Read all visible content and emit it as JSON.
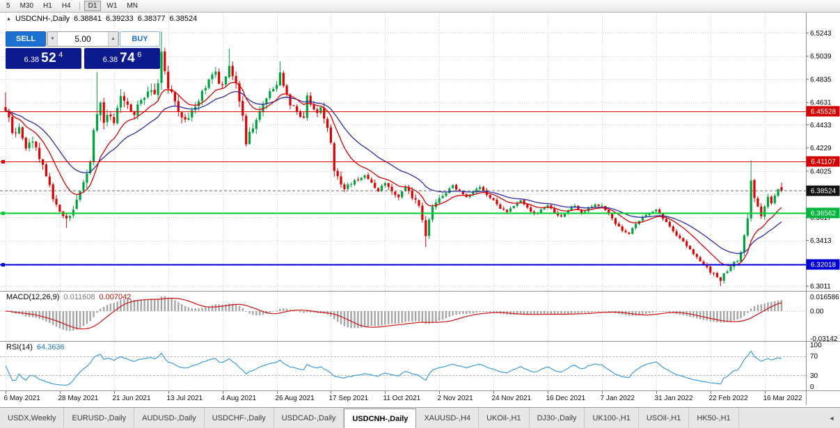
{
  "toolbar": {
    "groups": [
      [
        "5",
        "M30",
        "H1",
        "H4"
      ],
      [
        "D1",
        "W1",
        "MN"
      ]
    ],
    "active": "D1"
  },
  "icons": {
    "symbol_marker": "▲",
    "spinner_up": "▲",
    "spinner_down": "▼",
    "tab_scroll_left": "◄"
  },
  "chart": {
    "title": "USDCNH-,Daily",
    "ohlc": {
      "open": "6.38841",
      "high": "6.39233",
      "low": "6.38377",
      "close": "6.38524"
    }
  },
  "trade_panel": {
    "sell_label": "SELL",
    "buy_label": "BUY",
    "lot": "5.00",
    "bid": {
      "prefix": "6.38",
      "big": "52",
      "sup": "4"
    },
    "ask": {
      "prefix": "6.38",
      "big": "74",
      "sup": "6"
    }
  },
  "indicators": {
    "macd": {
      "label": "MACD(12,26,9)",
      "value1": "0.011608",
      "value2": "0.007042",
      "axis": {
        "top": "0.016586",
        "zero": "0.00",
        "bottom": "-0.03142"
      }
    },
    "rsi": {
      "label": "RSI(14)",
      "value": "64.3636",
      "axis": [
        "100",
        "70",
        "30",
        "0"
      ],
      "levels": [
        70,
        30
      ]
    }
  },
  "price_axis": {
    "labels": [
      "6.5243",
      "6.5039",
      "6.4835",
      "6.4631",
      "6.4433",
      "6.4229",
      "6.4025",
      "6.3617",
      "6.3413",
      "6.3011"
    ],
    "badges": [
      {
        "value": "6.45528",
        "price": 6.45528,
        "color": "#d40000"
      },
      {
        "value": "6.41107",
        "price": 6.41107,
        "color": "#d40000"
      },
      {
        "value": "6.38524",
        "price": 6.38524,
        "color": "#141414"
      },
      {
        "value": "6.36562",
        "price": 6.36562,
        "color": "#00b43c"
      },
      {
        "value": "6.32018",
        "price": 6.32018,
        "color": "#0000d4"
      }
    ]
  },
  "levels": [
    {
      "price": 6.45528,
      "color": "#e00000",
      "width": 1,
      "handle": false
    },
    {
      "price": 6.41107,
      "color": "#e00000",
      "width": 1,
      "handle": true
    },
    {
      "price": 6.36562,
      "color": "#00cc30",
      "width": 2,
      "handle": true
    },
    {
      "price": 6.32018,
      "color": "#0000e0",
      "width": 2,
      "handle": true
    }
  ],
  "chart_data": {
    "type": "candlestick",
    "symbol": "USDCNH",
    "timeframe": "Daily",
    "candles": 230,
    "price_range": [
      6.2975,
      6.5424
    ],
    "bid_price": 6.38524,
    "last_ohlc": [
      6.38841,
      6.39233,
      6.38377,
      6.38524
    ],
    "up_color": "#00a23c",
    "down_color": "#dd0000",
    "ma_fast": {
      "period": 12,
      "color": "#d40000"
    },
    "ma_slow": {
      "period": 26,
      "color": "#2a2aa8"
    },
    "y_gridlines": [
      6.5243,
      6.5039,
      6.4835,
      6.4631,
      6.4433,
      6.4229,
      6.4025,
      6.3821,
      6.3617,
      6.3413,
      6.3209,
      6.3011
    ],
    "x_label_every": 16,
    "x_labels": [
      "6 May 2021",
      "28 May 2021",
      "21 Jun 2021",
      "13 Jul 2021",
      "4 Aug 2021",
      "26 Aug 2021",
      "17 Sep 2021",
      "11 Oct 2021",
      "2 Nov 2021",
      "24 Nov 2021",
      "16 Dec 2021",
      "7 Jan 2022",
      "31 Jan 2022",
      "22 Feb 2022",
      "16 Mar 2022"
    ],
    "close_waypoints": [
      [
        0,
        6.458
      ],
      [
        1,
        6.448
      ],
      [
        2,
        6.434
      ],
      [
        4,
        6.44
      ],
      [
        6,
        6.422
      ],
      [
        8,
        6.43
      ],
      [
        10,
        6.414
      ],
      [
        12,
        6.4
      ],
      [
        14,
        6.378
      ],
      [
        16,
        6.368
      ],
      [
        18,
        6.36
      ],
      [
        20,
        6.37
      ],
      [
        22,
        6.383
      ],
      [
        24,
        6.398
      ],
      [
        25,
        6.41
      ],
      [
        26,
        6.438
      ],
      [
        27,
        6.452
      ],
      [
        28,
        6.462
      ],
      [
        29,
        6.448
      ],
      [
        30,
        6.455
      ],
      [
        32,
        6.446
      ],
      [
        34,
        6.47
      ],
      [
        36,
        6.462
      ],
      [
        38,
        6.452
      ],
      [
        40,
        6.466
      ],
      [
        42,
        6.474
      ],
      [
        44,
        6.468
      ],
      [
        45,
        6.48
      ],
      [
        46,
        6.508
      ],
      [
        47,
        6.488
      ],
      [
        48,
        6.478
      ],
      [
        50,
        6.462
      ],
      [
        52,
        6.452
      ],
      [
        54,
        6.448
      ],
      [
        56,
        6.46
      ],
      [
        58,
        6.472
      ],
      [
        60,
        6.482
      ],
      [
        62,
        6.49
      ],
      [
        63,
        6.48
      ],
      [
        64,
        6.478
      ],
      [
        65,
        6.488
      ],
      [
        66,
        6.496
      ],
      [
        68,
        6.478
      ],
      [
        70,
        6.45
      ],
      [
        71,
        6.428
      ],
      [
        72,
        6.436
      ],
      [
        74,
        6.448
      ],
      [
        76,
        6.462
      ],
      [
        78,
        6.472
      ],
      [
        80,
        6.48
      ],
      [
        81,
        6.49
      ],
      [
        82,
        6.478
      ],
      [
        84,
        6.462
      ],
      [
        86,
        6.455
      ],
      [
        88,
        6.448
      ],
      [
        89,
        6.468
      ],
      [
        90,
        6.462
      ],
      [
        92,
        6.455
      ],
      [
        93,
        6.46
      ],
      [
        95,
        6.44
      ],
      [
        96,
        6.428
      ],
      [
        97,
        6.404
      ],
      [
        99,
        6.392
      ],
      [
        100,
        6.386
      ],
      [
        102,
        6.392
      ],
      [
        104,
        6.396
      ],
      [
        106,
        6.4
      ],
      [
        108,
        6.392
      ],
      [
        110,
        6.386
      ],
      [
        112,
        6.393
      ],
      [
        114,
        6.384
      ],
      [
        116,
        6.38
      ],
      [
        118,
        6.388
      ],
      [
        120,
        6.38
      ],
      [
        122,
        6.372
      ],
      [
        123,
        6.358
      ],
      [
        124,
        6.344
      ],
      [
        125,
        6.36
      ],
      [
        126,
        6.37
      ],
      [
        128,
        6.379
      ],
      [
        130,
        6.384
      ],
      [
        132,
        6.39
      ],
      [
        134,
        6.384
      ],
      [
        136,
        6.379
      ],
      [
        138,
        6.384
      ],
      [
        140,
        6.388
      ],
      [
        142,
        6.382
      ],
      [
        144,
        6.377
      ],
      [
        146,
        6.37
      ],
      [
        148,
        6.366
      ],
      [
        150,
        6.372
      ],
      [
        152,
        6.377
      ],
      [
        154,
        6.37
      ],
      [
        156,
        6.364
      ],
      [
        158,
        6.369
      ],
      [
        160,
        6.373
      ],
      [
        162,
        6.366
      ],
      [
        164,
        6.362
      ],
      [
        166,
        6.368
      ],
      [
        168,
        6.372
      ],
      [
        170,
        6.366
      ],
      [
        172,
        6.37
      ],
      [
        174,
        6.374
      ],
      [
        176,
        6.371
      ],
      [
        178,
        6.364
      ],
      [
        180,
        6.356
      ],
      [
        182,
        6.35
      ],
      [
        184,
        6.347
      ],
      [
        186,
        6.356
      ],
      [
        188,
        6.362
      ],
      [
        190,
        6.366
      ],
      [
        192,
        6.369
      ],
      [
        194,
        6.36
      ],
      [
        196,
        6.354
      ],
      [
        198,
        6.346
      ],
      [
        200,
        6.34
      ],
      [
        202,
        6.333
      ],
      [
        204,
        6.326
      ],
      [
        206,
        6.32
      ],
      [
        208,
        6.314
      ],
      [
        210,
        6.309
      ],
      [
        211,
        6.306
      ],
      [
        212,
        6.312
      ],
      [
        214,
        6.318
      ],
      [
        216,
        6.324
      ],
      [
        217,
        6.33
      ],
      [
        218,
        6.345
      ],
      [
        219,
        6.362
      ],
      [
        220,
        6.394
      ],
      [
        221,
        6.38
      ],
      [
        222,
        6.37
      ],
      [
        223,
        6.363
      ],
      [
        224,
        6.372
      ],
      [
        225,
        6.38
      ],
      [
        226,
        6.374
      ],
      [
        227,
        6.382
      ],
      [
        228,
        6.387
      ],
      [
        229,
        6.38524
      ]
    ],
    "volatility_waypoints": [
      [
        0,
        0.013
      ],
      [
        10,
        0.012
      ],
      [
        20,
        0.01
      ],
      [
        26,
        0.014
      ],
      [
        46,
        0.015
      ],
      [
        60,
        0.011
      ],
      [
        71,
        0.012
      ],
      [
        80,
        0.01
      ],
      [
        90,
        0.009
      ],
      [
        97,
        0.012
      ],
      [
        105,
        0.007
      ],
      [
        115,
        0.006
      ],
      [
        124,
        0.009
      ],
      [
        130,
        0.005
      ],
      [
        145,
        0.0045
      ],
      [
        160,
        0.0045
      ],
      [
        175,
        0.005
      ],
      [
        190,
        0.0045
      ],
      [
        200,
        0.005
      ],
      [
        210,
        0.006
      ],
      [
        216,
        0.008
      ],
      [
        219,
        0.014
      ],
      [
        221,
        0.01
      ],
      [
        224,
        0.007
      ],
      [
        229,
        0.005
      ]
    ],
    "spikes": [
      {
        "i": 0,
        "h": 6.472
      },
      {
        "i": 18,
        "l": 6.3525
      },
      {
        "i": 27,
        "h": 6.49
      },
      {
        "i": 46,
        "h": 6.5255
      },
      {
        "i": 66,
        "h": 6.5105
      },
      {
        "i": 81,
        "h": 6.4995
      },
      {
        "i": 124,
        "l": 6.3355
      },
      {
        "i": 211,
        "l": 6.3012
      },
      {
        "i": 220,
        "h": 6.412
      }
    ]
  },
  "tabs": {
    "items": [
      {
        "label": "USDX,Weekly",
        "active": false
      },
      {
        "label": "EURUSD-,Daily",
        "active": false
      },
      {
        "label": "AUDUSD-,Daily",
        "active": false
      },
      {
        "label": "USDCHF-,Daily",
        "active": false
      },
      {
        "label": "USDCAD-,Daily",
        "active": false
      },
      {
        "label": "USDCNH-,Daily",
        "active": true
      },
      {
        "label": "XAUUSD-,H4",
        "active": false
      },
      {
        "label": "UKOil-,H1",
        "active": false
      },
      {
        "label": "DJ30-,Daily",
        "active": false
      },
      {
        "label": "UK100-,H1",
        "active": false
      },
      {
        "label": "USOil-,H1",
        "active": false
      },
      {
        "label": "HK50-,H1",
        "active": false
      }
    ]
  }
}
